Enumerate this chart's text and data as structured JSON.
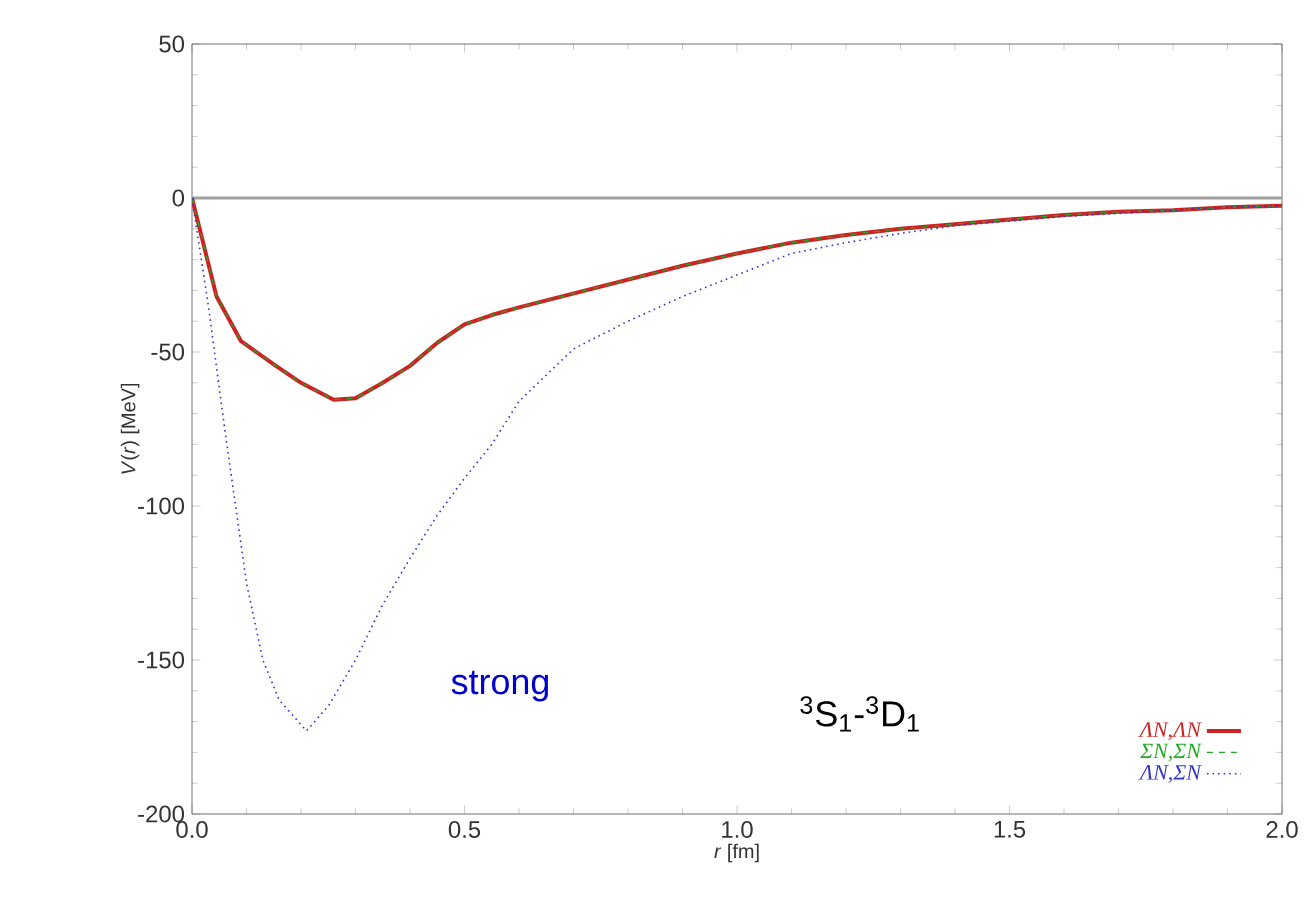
{
  "chart_data": {
    "type": "line",
    "xlabel": "*r* [fm]",
    "ylabel": "*V*(*r*) [MeV]",
    "xlim": [
      0,
      2
    ],
    "ylim": [
      -200,
      50
    ],
    "xticks": [
      {
        "value": 0,
        "label": "0.0"
      },
      {
        "value": 0.5,
        "label": "0.5"
      },
      {
        "value": 1,
        "label": "1.0"
      },
      {
        "value": 1.5,
        "label": "1.5"
      },
      {
        "value": 2,
        "label": "2.0"
      }
    ],
    "yticks": [
      -200,
      -150,
      -100,
      -50,
      0,
      50
    ],
    "legend": "bottom right",
    "grid": false,
    "annotations": [
      "strong",
      "$^{3}$S$_{1}$-$^{3}$D$_{1}$"
    ],
    "ref_lines": [
      {
        "axis": "y",
        "value": 0,
        "color": "#a0a0a0"
      }
    ],
    "series": [
      {
        "name": "ΛN,ΛN",
        "color": "#cc2222",
        "line_style": "solid",
        "x": [
          0,
          0.045,
          0.09,
          0.15,
          0.2,
          0.26,
          0.3,
          0.35,
          0.4,
          0.45,
          0.5,
          0.55,
          0.6,
          0.7,
          0.8,
          0.9,
          1.0,
          1.1,
          1.2,
          1.3,
          1.4,
          1.5,
          1.6,
          1.7,
          1.8,
          1.9,
          2.0
        ],
        "values": [
          0,
          -32,
          -46.5,
          -54,
          -60,
          -65.5,
          -65,
          -60,
          -54.5,
          -47,
          -41,
          -38,
          -35.5,
          -31,
          -26.5,
          -22,
          -18,
          -14.5,
          -12,
          -10,
          -8.5,
          -7,
          -5.5,
          -4.5,
          -4,
          -3,
          -2.5
        ]
      },
      {
        "name": "ΣN,ΣN",
        "color": "#22aa22",
        "line_style": "dashed",
        "x": [
          0,
          0.045,
          0.09,
          0.15,
          0.2,
          0.26,
          0.3,
          0.35,
          0.4,
          0.45,
          0.5,
          0.55,
          0.6,
          0.7,
          0.8,
          0.9,
          1.0,
          1.1,
          1.2,
          1.3,
          1.4,
          1.5,
          1.6,
          1.7,
          1.8,
          1.9,
          2.0
        ],
        "values": [
          0,
          -32,
          -46.5,
          -54,
          -60,
          -65.5,
          -65,
          -60,
          -54.5,
          -47,
          -41,
          -38,
          -35.5,
          -31,
          -26.5,
          -22,
          -18,
          -14.5,
          -12,
          -10,
          -8.5,
          -7,
          -5.5,
          -4.5,
          -4,
          -3,
          -2.5
        ]
      },
      {
        "name": "ΛN,ΣN",
        "color": "#3333cc",
        "line_style": "dotted",
        "x": [
          0,
          0.03,
          0.06,
          0.08,
          0.1,
          0.13,
          0.16,
          0.21,
          0.25,
          0.3,
          0.35,
          0.4,
          0.45,
          0.5,
          0.55,
          0.6,
          0.7,
          0.8,
          0.9,
          1.0,
          1.1,
          1.2,
          1.3,
          1.4,
          1.5,
          1.6,
          1.7,
          1.8,
          1.9,
          2.0
        ],
        "values": [
          0,
          -35,
          -75,
          -100,
          -125,
          -150,
          -163,
          -173,
          -165,
          -150,
          -132,
          -117,
          -103,
          -91,
          -80,
          -66,
          -49,
          -40,
          -32,
          -25,
          -18,
          -14.5,
          -11.5,
          -9,
          -7.5,
          -6,
          -5,
          -4,
          -3,
          -2.5
        ]
      }
    ]
  }
}
